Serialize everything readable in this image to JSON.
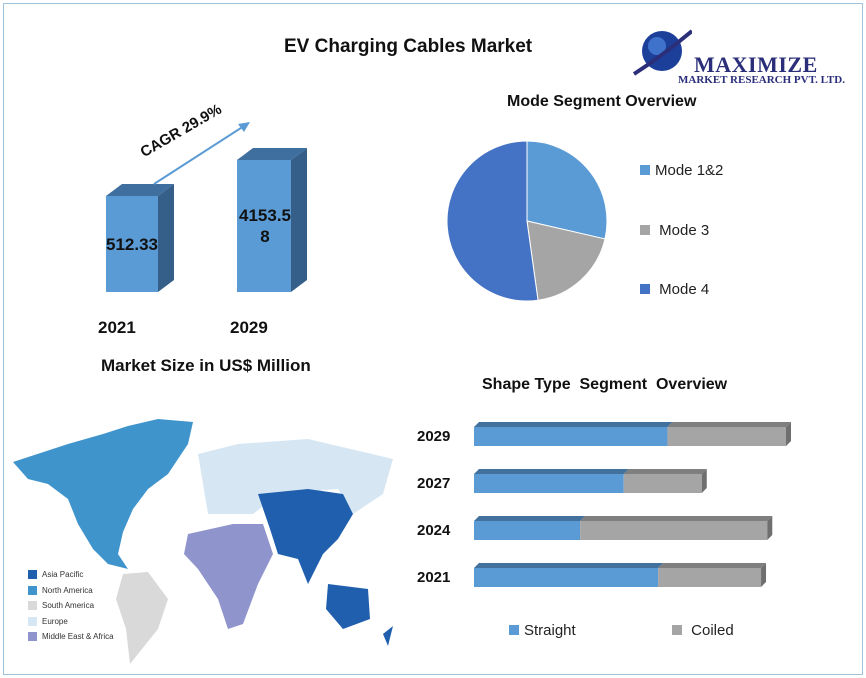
{
  "title": "EV Charging  Cables Market",
  "logo": {
    "name": "MAXIMIZE",
    "sub": "MARKET RESEARCH PVT. LTD."
  },
  "chart_data": [
    {
      "type": "bar",
      "title": "",
      "xlabel": "Market Size in US$ Million",
      "categories": [
        "2021",
        "2029"
      ],
      "values": [
        512.33,
        4153.58
      ],
      "data_labels": [
        "512.33",
        "4153.5\n8"
      ],
      "annotation": "CAGR 29.9%",
      "color": "#5b9bd5"
    },
    {
      "type": "pie",
      "title": "Mode Segment Overview",
      "legend_position": "right",
      "slices": [
        {
          "name": "Mode 1&2",
          "value": 28.6,
          "color": "#5b9bd5"
        },
        {
          "name": "Mode 3",
          "value": 19.2,
          "color": "#a5a5a5"
        },
        {
          "name": "Mode 4",
          "value": 52.2,
          "color": "#4472c4"
        }
      ]
    },
    {
      "type": "bar",
      "orientation": "horizontal",
      "stacked": true,
      "title": "Shape Type  Segment  Overview",
      "legend_position": "bottom",
      "categories": [
        "2029",
        "2027",
        "2024",
        "2021"
      ],
      "series": [
        {
          "name": "Straight",
          "values": [
            62,
            48,
            34,
            59
          ],
          "color": "#5b9bd5"
        },
        {
          "name": "Coiled",
          "values": [
            38,
            25,
            60,
            33
          ],
          "color": "#a5a5a5"
        }
      ]
    }
  ],
  "map": {
    "legend": [
      {
        "name": "Asia Pacific",
        "color": "#1f5fae"
      },
      {
        "name": "North America",
        "color": "#3f94cc"
      },
      {
        "name": "South America",
        "color": "#d9d9d9"
      },
      {
        "name": "Europe",
        "color": "#d6e7f3"
      },
      {
        "name": "Middle East & Africa",
        "color": "#8f94cc"
      }
    ]
  }
}
